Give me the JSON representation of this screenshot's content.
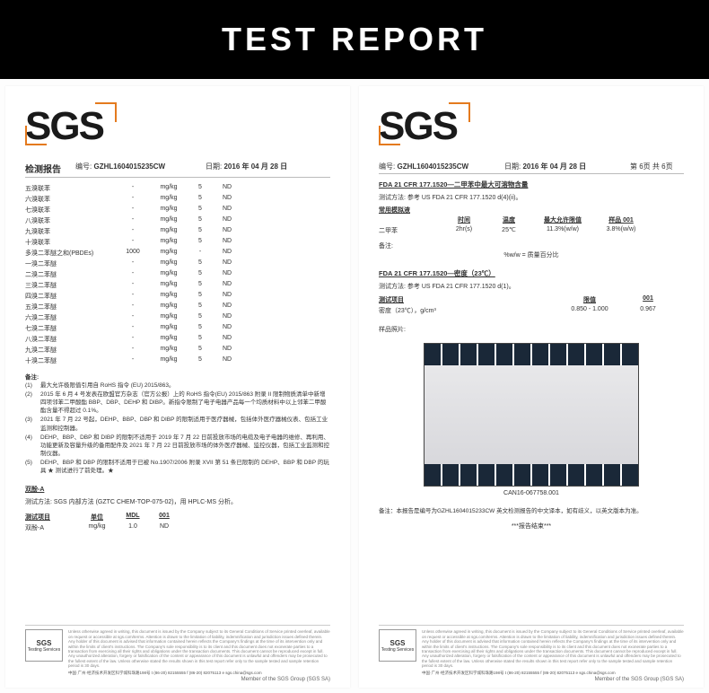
{
  "header": {
    "title": "TEST REPORT"
  },
  "logo": {
    "text": "SGS",
    "accent": "#e47a1e"
  },
  "page1": {
    "top": {
      "title": "检测报告",
      "no_label": "编号:",
      "no_value": "GZHL1604015235CW",
      "date_label": "日期:",
      "date_value": "2016 年 04 月 28 日"
    },
    "columns": [
      "",
      "",
      "mg/kg",
      "",
      ""
    ],
    "rows": [
      {
        "name": "五溴联苯",
        "lim": "-",
        "unit": "mg/kg",
        "mdl": "5",
        "res": "ND"
      },
      {
        "name": "六溴联苯",
        "lim": "-",
        "unit": "mg/kg",
        "mdl": "5",
        "res": "ND"
      },
      {
        "name": "七溴联苯",
        "lim": "-",
        "unit": "mg/kg",
        "mdl": "5",
        "res": "ND"
      },
      {
        "name": "八溴联苯",
        "lim": "-",
        "unit": "mg/kg",
        "mdl": "5",
        "res": "ND"
      },
      {
        "name": "九溴联苯",
        "lim": "-",
        "unit": "mg/kg",
        "mdl": "5",
        "res": "ND"
      },
      {
        "name": "十溴联苯",
        "lim": "-",
        "unit": "mg/kg",
        "mdl": "5",
        "res": "ND"
      },
      {
        "name": "多溴二苯醚之和(PBDEs)",
        "lim": "1000",
        "unit": "mg/kg",
        "mdl": "-",
        "res": "ND"
      },
      {
        "name": "一溴二苯醚",
        "lim": "-",
        "unit": "mg/kg",
        "mdl": "5",
        "res": "ND"
      },
      {
        "name": "二溴二苯醚",
        "lim": "-",
        "unit": "mg/kg",
        "mdl": "5",
        "res": "ND"
      },
      {
        "name": "三溴二苯醚",
        "lim": "-",
        "unit": "mg/kg",
        "mdl": "5",
        "res": "ND"
      },
      {
        "name": "四溴二苯醚",
        "lim": "-",
        "unit": "mg/kg",
        "mdl": "5",
        "res": "ND"
      },
      {
        "name": "五溴二苯醚",
        "lim": "-",
        "unit": "mg/kg",
        "mdl": "5",
        "res": "ND"
      },
      {
        "name": "六溴二苯醚",
        "lim": "-",
        "unit": "mg/kg",
        "mdl": "5",
        "res": "ND"
      },
      {
        "name": "七溴二苯醚",
        "lim": "-",
        "unit": "mg/kg",
        "mdl": "5",
        "res": "ND"
      },
      {
        "name": "八溴二苯醚",
        "lim": "-",
        "unit": "mg/kg",
        "mdl": "5",
        "res": "ND"
      },
      {
        "name": "九溴二苯醚",
        "lim": "-",
        "unit": "mg/kg",
        "mdl": "5",
        "res": "ND"
      },
      {
        "name": "十溴二苯醚",
        "lim": "-",
        "unit": "mg/kg",
        "mdl": "5",
        "res": "ND"
      }
    ],
    "remarks_label": "备注:",
    "remarks": [
      "最大允许极限值引用自 RoHS 指令 (EU) 2015/863。",
      "2015 年 6 月 4 号发表在欧盟官方杂志（官方公报）上的 RoHS 指令(EU) 2015/863 附录 II 限制物质清单中新增四项邻苯二甲酸酯 BBP、DBP、DEHP 和 DIBP。新指令限制了电子电器产品每一个均质材料中以上邻苯二甲酸酯含量不得超过 0.1%。",
      "2021 年 7 月 22 号起，DEHP、BBP、DBP 和 DIBP 的限制适用于医疗器械，包括体外医疗器械仪表、包括工业监测和控制器。",
      "DEHP、BBP、DBP 和 DIBP 的限制不适用于 2019 年 7 月 22 日前投放市场的电缆及电子电器的维修、再利用、功能更新及容量升级的备用配件及 2021 年 7 月 22 日前投放市场的体外医疗器械、监控仪器，包括工业监测和控制仪器。",
      "DEHP、BBP 和 DBP 的限制不适用于已被 No.1907/2006 附录 XVII 第 51 条已限制的 DEHP、BBP 和 DBP 的玩具 ★ 测试进行了前处理。★"
    ],
    "bpa": {
      "title": "双酚-A",
      "method_label": "测试方法:",
      "method": "SGS 内部方法 (GZTC CHEM-TOP-075-02)，用 HPLC-MS 分析。",
      "th": [
        "测试项目",
        "单位",
        "MDL",
        "001"
      ],
      "row": [
        "双酚-A",
        "mg/kg",
        "1.0",
        "ND"
      ]
    }
  },
  "page2": {
    "top": {
      "title": "",
      "no_label": "编号:",
      "no_value": "GZHL1604015235CW",
      "date_label": "日期:",
      "date_value": "2016 年 04 月 28 日",
      "page": "第 6页 共 6页"
    },
    "sec1": {
      "title": "FDA 21 CFR 177.1520—二甲苯中最大可溶物含量",
      "method_label": "测试方法:",
      "method": "参考 US FDA 21 CFR 177.1520 d(4)(ii)。",
      "cond_label": "常用模拟液",
      "th": [
        "",
        "时间",
        "温度",
        "最大允许限值",
        "样品 001"
      ],
      "row": [
        "二甲苯",
        "2hr(s)",
        "25℃",
        "11.3%(w/w)",
        "3.8%(w/w)"
      ],
      "note_label": "备注:",
      "note": "%w/w = 质量百分比"
    },
    "sec2": {
      "title": "FDA 21 CFR 177.1520—密度（23℃）",
      "method_label": "测试方法:",
      "method": "参考 US FDA 21 CFR 177.1520 d(1)。",
      "th": [
        "测试项目",
        "",
        "",
        "限值",
        "001"
      ],
      "row": [
        "密度（23℃），g/cm³",
        "",
        "",
        "0.850 - 1.000",
        "0.967"
      ]
    },
    "photo_label": "样品照片:",
    "photo_cap": "CAN16-067758.001",
    "note_line": "备注：本报告是编号为GZHL1604015233CW 英文检测报告的中文译本，如有歧义，以英文版本为准。",
    "end": "***报告结束***"
  },
  "footer": {
    "logo": "SGS",
    "sub": "Testing Services",
    "disclaimer": "Unless otherwise agreed in writing, this document is issued by the Company subject to its General Conditions of Service printed overleaf, available on request or accessible at sgs.com/terms. Attention is drawn to the limitation of liability, indemnification and jurisdiction issues defined therein. Any holder of this document is advised that information contained herein reflects the Company's findings at the time of its intervention only and within the limits of client's instructions. The Company's sole responsibility is to its client and this document does not exonerate parties to a transaction from exercising all their rights and obligations under the transaction documents. This document cannot be reproduced except in full. Any unauthorized alteration, forgery or falsification of the content or appearance of this document is unlawful and offenders may be prosecuted to the fullest extent of the law. Unless otherwise stated the results shown in this test report refer only to the sample tested and sample retention period is 30 days.",
    "addr": "中国·广州·经济技术开发区科学城科珠路198号      t (86-20) 82155555  f (86-20) 82075113    e sgs.china@sgs.com",
    "member": "Member of the SGS Group (SGS SA)"
  }
}
